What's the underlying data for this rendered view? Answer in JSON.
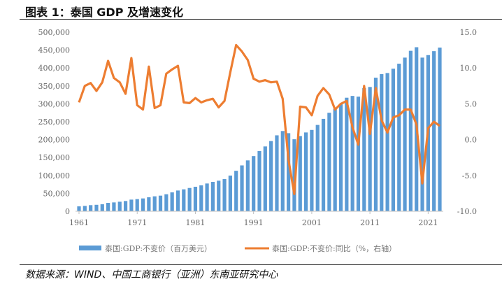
{
  "title": "图表 1：泰国 GDP 及增速变化",
  "source": "数据来源：WIND、中国工商银行（亚洲）东南亚研究中心",
  "chart_data": {
    "type": "bar+line",
    "title": "图表 1：泰国 GDP 及增速变化",
    "x": [
      1961,
      1962,
      1963,
      1964,
      1965,
      1966,
      1967,
      1968,
      1969,
      1970,
      1971,
      1972,
      1973,
      1974,
      1975,
      1976,
      1977,
      1978,
      1979,
      1980,
      1981,
      1982,
      1983,
      1984,
      1985,
      1986,
      1987,
      1988,
      1989,
      1990,
      1991,
      1992,
      1993,
      1994,
      1995,
      1996,
      1997,
      1998,
      1999,
      2000,
      2001,
      2002,
      2003,
      2004,
      2005,
      2006,
      2007,
      2008,
      2009,
      2010,
      2011,
      2012,
      2013,
      2014,
      2015,
      2016,
      2017,
      2018,
      2019,
      2020,
      2021,
      2022,
      2023
    ],
    "xticks": [
      "1961",
      "1971",
      "1981",
      "1991",
      "2001",
      "2011",
      "2021"
    ],
    "left_axis": {
      "ylim": [
        0,
        500000
      ],
      "ticks": [
        "0",
        "50,000",
        "100,000",
        "150,000",
        "200,000",
        "250,000",
        "300,000",
        "350,000",
        "400,000",
        "450,000",
        "500,000"
      ]
    },
    "right_axis": {
      "ylim": [
        -10,
        15
      ],
      "ticks": [
        "-10.0",
        "-5.0",
        "0.0",
        "5.0",
        "10.0",
        "15.0"
      ]
    },
    "series": [
      {
        "name": "泰国:GDP:不变价（百万美元）",
        "type": "bar",
        "axis": "left",
        "color": "#5b9bd5",
        "values": [
          13700,
          15000,
          17000,
          18000,
          19500,
          23400,
          24700,
          26600,
          28600,
          32500,
          33900,
          35800,
          39000,
          41700,
          43600,
          47500,
          52700,
          57900,
          61200,
          65000,
          68400,
          72300,
          77500,
          82000,
          85300,
          89800,
          99600,
          113000,
          128000,
          142000,
          154000,
          168000,
          181000,
          196000,
          212000,
          224000,
          218000,
          201000,
          210000,
          220000,
          227000,
          241000,
          258000,
          275000,
          286000,
          300000,
          317000,
          322000,
          320000,
          344000,
          347000,
          373000,
          383000,
          386000,
          398000,
          412000,
          429000,
          448000,
          458000,
          429000,
          436000,
          447000,
          457000
        ]
      },
      {
        "name": "泰国:GDP:不变价:同比（%，右轴）",
        "type": "line",
        "axis": "right",
        "color": "#ed7d31",
        "values": [
          5.2,
          7.5,
          7.9,
          6.8,
          8.0,
          11.0,
          8.6,
          8.0,
          6.4,
          11.4,
          4.8,
          4.2,
          10.2,
          4.4,
          4.8,
          9.2,
          9.8,
          10.3,
          5.2,
          5.1,
          5.8,
          5.2,
          5.5,
          5.7,
          4.5,
          5.4,
          9.4,
          13.2,
          12.3,
          11.1,
          8.5,
          8.1,
          8.3,
          8.0,
          8.1,
          5.7,
          -2.8,
          -7.6,
          4.6,
          4.5,
          3.4,
          6.1,
          7.2,
          6.3,
          4.2,
          5.0,
          5.4,
          1.7,
          -0.7,
          7.5,
          0.8,
          7.2,
          2.7,
          1.0,
          3.1,
          3.4,
          4.2,
          4.2,
          2.1,
          -6.1,
          1.6,
          2.5,
          1.9
        ]
      }
    ],
    "legend": "bottom"
  }
}
